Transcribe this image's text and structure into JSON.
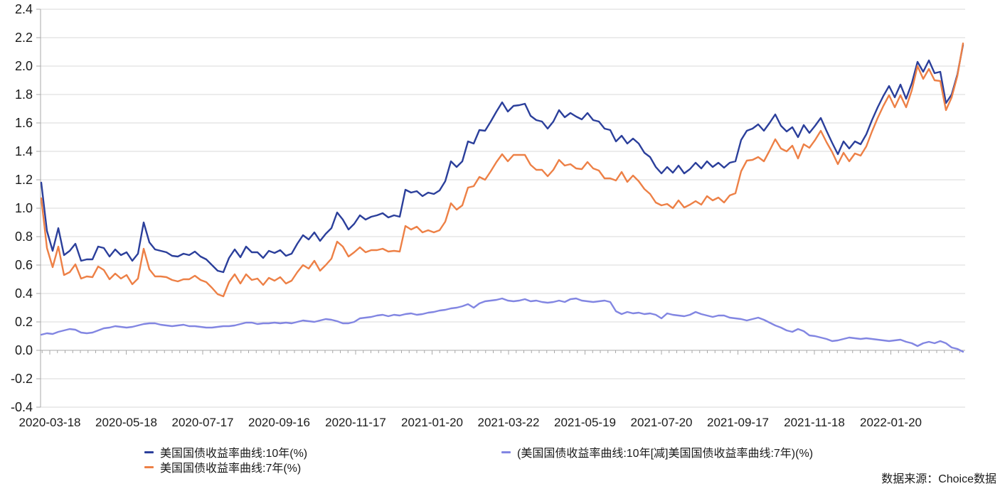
{
  "chart": {
    "source_label": "数据来源：Choice数据",
    "legend": [
      {
        "label": "美国国债收益率曲线:10年(%)",
        "color": "#2B3F9B"
      },
      {
        "label": "美国国债收益率曲线:7年(%)",
        "color": "#ED8046"
      },
      {
        "label": "(美国国债收益率曲线:10年[减]美国国债收益率曲线:7年)(%)",
        "color": "#8286E2"
      }
    ]
  },
  "chart_data": {
    "type": "line",
    "title": "",
    "xlabel": "",
    "ylabel": "",
    "x_range": [
      "2020-03-18",
      "2022-03-16"
    ],
    "ylim": [
      -0.4,
      2.4
    ],
    "y_ticks": [
      -0.4,
      -0.2,
      0.0,
      0.2,
      0.4,
      0.6,
      0.8,
      1.0,
      1.2,
      1.4,
      1.6,
      1.8,
      2.0,
      2.2,
      2.4
    ],
    "x_tick_labels": [
      "2020-03-18",
      "2020-05-18",
      "2020-07-17",
      "2020-09-16",
      "2020-11-17",
      "2021-01-20",
      "2021-03-22",
      "2021-05-19",
      "2021-07-20",
      "2021-09-17",
      "2021-11-18",
      "2022-01-20"
    ],
    "grid": "horizontal",
    "legend_position": "bottom",
    "series": [
      {
        "name": "美国国债收益率曲线:10年(%)",
        "color": "#2B3F9B",
        "values": [
          1.18,
          0.84,
          0.7,
          0.86,
          0.67,
          0.7,
          0.75,
          0.63,
          0.64,
          0.64,
          0.73,
          0.72,
          0.66,
          0.71,
          0.67,
          0.69,
          0.63,
          0.68,
          0.9,
          0.76,
          0.71,
          0.7,
          0.69,
          0.665,
          0.66,
          0.68,
          0.67,
          0.695,
          0.66,
          0.64,
          0.6,
          0.56,
          0.55,
          0.65,
          0.71,
          0.655,
          0.73,
          0.69,
          0.69,
          0.65,
          0.7,
          0.685,
          0.705,
          0.665,
          0.68,
          0.75,
          0.81,
          0.78,
          0.83,
          0.77,
          0.82,
          0.86,
          0.97,
          0.92,
          0.85,
          0.89,
          0.95,
          0.92,
          0.94,
          0.95,
          0.965,
          0.935,
          0.95,
          0.94,
          1.13,
          1.11,
          1.12,
          1.085,
          1.11,
          1.1,
          1.125,
          1.19,
          1.33,
          1.29,
          1.33,
          1.47,
          1.455,
          1.55,
          1.545,
          1.61,
          1.68,
          1.745,
          1.68,
          1.72,
          1.725,
          1.735,
          1.65,
          1.62,
          1.61,
          1.56,
          1.61,
          1.69,
          1.64,
          1.67,
          1.645,
          1.625,
          1.67,
          1.62,
          1.61,
          1.56,
          1.55,
          1.47,
          1.51,
          1.455,
          1.49,
          1.455,
          1.39,
          1.36,
          1.29,
          1.245,
          1.29,
          1.25,
          1.3,
          1.245,
          1.275,
          1.32,
          1.28,
          1.33,
          1.29,
          1.32,
          1.285,
          1.32,
          1.33,
          1.48,
          1.545,
          1.56,
          1.59,
          1.545,
          1.6,
          1.66,
          1.58,
          1.54,
          1.57,
          1.5,
          1.585,
          1.53,
          1.58,
          1.635,
          1.545,
          1.46,
          1.38,
          1.47,
          1.42,
          1.47,
          1.45,
          1.52,
          1.62,
          1.71,
          1.79,
          1.86,
          1.78,
          1.87,
          1.77,
          1.88,
          2.03,
          1.96,
          2.04,
          1.95,
          1.96,
          1.74,
          1.8,
          1.94,
          2.15
        ]
      },
      {
        "name": "美国国债收益率曲线:7年(%)",
        "color": "#ED8046",
        "values": [
          1.07,
          0.72,
          0.585,
          0.73,
          0.53,
          0.55,
          0.605,
          0.505,
          0.52,
          0.515,
          0.59,
          0.565,
          0.5,
          0.54,
          0.505,
          0.53,
          0.465,
          0.505,
          0.715,
          0.57,
          0.52,
          0.52,
          0.515,
          0.495,
          0.485,
          0.5,
          0.5,
          0.525,
          0.495,
          0.48,
          0.44,
          0.395,
          0.38,
          0.48,
          0.535,
          0.47,
          0.535,
          0.495,
          0.505,
          0.46,
          0.51,
          0.49,
          0.515,
          0.47,
          0.49,
          0.55,
          0.6,
          0.575,
          0.63,
          0.56,
          0.6,
          0.645,
          0.765,
          0.73,
          0.66,
          0.69,
          0.725,
          0.69,
          0.705,
          0.705,
          0.715,
          0.695,
          0.7,
          0.695,
          0.875,
          0.85,
          0.87,
          0.83,
          0.845,
          0.83,
          0.845,
          0.905,
          1.035,
          0.99,
          1.02,
          1.145,
          1.155,
          1.22,
          1.2,
          1.26,
          1.325,
          1.38,
          1.33,
          1.375,
          1.375,
          1.375,
          1.305,
          1.27,
          1.27,
          1.225,
          1.27,
          1.34,
          1.3,
          1.31,
          1.28,
          1.275,
          1.325,
          1.28,
          1.265,
          1.21,
          1.21,
          1.195,
          1.255,
          1.185,
          1.23,
          1.19,
          1.135,
          1.1,
          1.04,
          1.02,
          1.03,
          1.0,
          1.055,
          1.005,
          1.025,
          1.05,
          1.025,
          1.085,
          1.055,
          1.075,
          1.04,
          1.09,
          1.105,
          1.26,
          1.335,
          1.34,
          1.36,
          1.33,
          1.405,
          1.485,
          1.42,
          1.4,
          1.44,
          1.35,
          1.45,
          1.425,
          1.48,
          1.545,
          1.465,
          1.395,
          1.31,
          1.39,
          1.33,
          1.385,
          1.37,
          1.435,
          1.54,
          1.635,
          1.72,
          1.795,
          1.71,
          1.795,
          1.71,
          1.83,
          2.0,
          1.91,
          1.98,
          1.9,
          1.895,
          1.69,
          1.78,
          1.93,
          2.16
        ]
      },
      {
        "name": "(美国国债收益率曲线:10年[减]美国国债收益率曲线:7年)(%)",
        "color": "#8286E2",
        "values": [
          0.11,
          0.12,
          0.115,
          0.13,
          0.14,
          0.15,
          0.145,
          0.125,
          0.12,
          0.125,
          0.14,
          0.155,
          0.16,
          0.17,
          0.165,
          0.16,
          0.165,
          0.175,
          0.185,
          0.19,
          0.19,
          0.18,
          0.175,
          0.17,
          0.175,
          0.18,
          0.17,
          0.17,
          0.165,
          0.16,
          0.16,
          0.165,
          0.17,
          0.17,
          0.175,
          0.185,
          0.195,
          0.195,
          0.185,
          0.19,
          0.19,
          0.195,
          0.19,
          0.195,
          0.19,
          0.2,
          0.21,
          0.205,
          0.2,
          0.21,
          0.22,
          0.215,
          0.205,
          0.19,
          0.19,
          0.2,
          0.225,
          0.23,
          0.235,
          0.245,
          0.25,
          0.24,
          0.25,
          0.245,
          0.255,
          0.26,
          0.25,
          0.255,
          0.265,
          0.27,
          0.28,
          0.285,
          0.295,
          0.3,
          0.31,
          0.325,
          0.3,
          0.33,
          0.345,
          0.35,
          0.355,
          0.365,
          0.35,
          0.345,
          0.35,
          0.36,
          0.345,
          0.35,
          0.34,
          0.335,
          0.34,
          0.35,
          0.34,
          0.36,
          0.365,
          0.35,
          0.345,
          0.34,
          0.345,
          0.35,
          0.34,
          0.275,
          0.255,
          0.27,
          0.26,
          0.265,
          0.255,
          0.26,
          0.25,
          0.225,
          0.26,
          0.25,
          0.245,
          0.24,
          0.25,
          0.27,
          0.255,
          0.245,
          0.235,
          0.245,
          0.245,
          0.23,
          0.225,
          0.22,
          0.21,
          0.22,
          0.23,
          0.215,
          0.195,
          0.175,
          0.16,
          0.14,
          0.13,
          0.15,
          0.135,
          0.105,
          0.1,
          0.09,
          0.08,
          0.065,
          0.07,
          0.08,
          0.09,
          0.085,
          0.08,
          0.085,
          0.08,
          0.075,
          0.07,
          0.065,
          0.07,
          0.075,
          0.06,
          0.05,
          0.03,
          0.05,
          0.06,
          0.05,
          0.065,
          0.05,
          0.02,
          0.01,
          -0.01
        ]
      }
    ],
    "style": {
      "gridline_color": "#D8D8D8",
      "axis_color": "#A8A8A8",
      "tick_label_color": "#1a1a1a"
    }
  }
}
